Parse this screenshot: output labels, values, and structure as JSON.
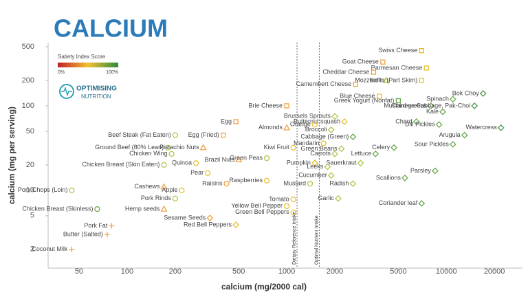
{
  "chart_data": {
    "type": "scatter",
    "title": "CALCIUM",
    "xlabel": "calcium (mg/2000 cal)",
    "ylabel": "calcium (mg per serving)",
    "xscale": "log",
    "yscale": "log",
    "xlim": [
      32,
      30000
    ],
    "ylim": [
      1.2,
      560
    ],
    "xticks": [
      50,
      100,
      200,
      500,
      1000,
      2000,
      5000,
      10000,
      20000
    ],
    "yticks": [
      2,
      5,
      10,
      20,
      50,
      100,
      200,
      500
    ],
    "legend": {
      "title": "Satiety Index Score",
      "min_label": "0%",
      "max_label": "100%"
    },
    "logo": {
      "line1": "OPTIMISING",
      "line2": "NUTRITION"
    },
    "reference_lines": [
      {
        "x": 1160,
        "label": "Dietary Reference Intake"
      },
      {
        "x": 1600,
        "label": "Optimal Nutrient Intake"
      }
    ],
    "points": [
      {
        "label": "Swiss Cheese",
        "x": 7000,
        "y": 450,
        "color": "#e6b422",
        "marker": "s"
      },
      {
        "label": "Goat Cheese",
        "x": 4000,
        "y": 330,
        "color": "#f0a040",
        "marker": "s"
      },
      {
        "label": "Parmesan Cheese",
        "x": 7500,
        "y": 280,
        "color": "#e6c229",
        "marker": "s"
      },
      {
        "label": "Cheddar Cheese",
        "x": 3500,
        "y": 250,
        "color": "#f0a040",
        "marker": "s"
      },
      {
        "label": "Kefir",
        "x": 4200,
        "y": 200,
        "color": "#a8c94a",
        "marker": "^"
      },
      {
        "label": "Mozzarella (Part Skim)",
        "x": 7000,
        "y": 200,
        "color": "#e6c229",
        "marker": "s"
      },
      {
        "label": "Camembert Cheese",
        "x": 2700,
        "y": 180,
        "color": "#f0a040",
        "marker": "s"
      },
      {
        "label": "Blue Cheese",
        "x": 3800,
        "y": 130,
        "color": "#e6c229",
        "marker": "s"
      },
      {
        "label": "Greek Yogurt (Nonfat)",
        "x": 5000,
        "y": 115,
        "color": "#6aa84f",
        "marker": "s"
      },
      {
        "label": "Bok Choy",
        "x": 17000,
        "y": 140,
        "color": "#4a9a4a",
        "marker": "d"
      },
      {
        "label": "Spinach",
        "x": 11000,
        "y": 120,
        "color": "#6aa84f",
        "marker": "d"
      },
      {
        "label": "Mustard greens",
        "x": 8000,
        "y": 100,
        "color": "#6aa84f",
        "marker": "d"
      },
      {
        "label": "Chinese Cabbage, Pak-Choi",
        "x": 15000,
        "y": 100,
        "color": "#4a9a4a",
        "marker": "d"
      },
      {
        "label": "Kale",
        "x": 9500,
        "y": 85,
        "color": "#6aa84f",
        "marker": "d"
      },
      {
        "label": "Chard",
        "x": 6500,
        "y": 65,
        "color": "#6aa84f",
        "marker": "d"
      },
      {
        "label": "Dill Pickles",
        "x": 9000,
        "y": 60,
        "color": "#6aa84f",
        "marker": "d"
      },
      {
        "label": "Watercress",
        "x": 22000,
        "y": 55,
        "color": "#4a9a4a",
        "marker": "d"
      },
      {
        "label": "Arugula",
        "x": 13000,
        "y": 45,
        "color": "#6aa84f",
        "marker": "d"
      },
      {
        "label": "Sour Pickles",
        "x": 11000,
        "y": 35,
        "color": "#6aa84f",
        "marker": "d"
      },
      {
        "label": "Parsley",
        "x": 8500,
        "y": 17,
        "color": "#6aa84f",
        "marker": "d"
      },
      {
        "label": "Scallions",
        "x": 5500,
        "y": 14,
        "color": "#6aa84f",
        "marker": "d"
      },
      {
        "label": "Coriander leaf",
        "x": 7000,
        "y": 7,
        "color": "#6aa84f",
        "marker": "d"
      },
      {
        "label": "Brie Cheese",
        "x": 1000,
        "y": 100,
        "color": "#f0a040",
        "marker": "s"
      },
      {
        "label": "Brussels Sprouts",
        "x": 2000,
        "y": 75,
        "color": "#a8c94a",
        "marker": "d"
      },
      {
        "label": "Butternut squash",
        "x": 2300,
        "y": 65,
        "color": "#e6c229",
        "marker": "d"
      },
      {
        "label": "Orange",
        "x": 1500,
        "y": 60,
        "color": "#e6c229",
        "marker": "o"
      },
      {
        "label": "Broccoli",
        "x": 1900,
        "y": 52,
        "color": "#a8c94a",
        "marker": "d"
      },
      {
        "label": "Almonds",
        "x": 1000,
        "y": 55,
        "color": "#f0a040",
        "marker": "^"
      },
      {
        "label": "Egg",
        "x": 480,
        "y": 65,
        "color": "#f0a040",
        "marker": "s"
      },
      {
        "label": "Egg (Fried)",
        "x": 400,
        "y": 45,
        "color": "#f0a040",
        "marker": "s"
      },
      {
        "label": "Beef Steak (Fat Eaten)",
        "x": 200,
        "y": 45,
        "color": "#a8c94a",
        "marker": "o"
      },
      {
        "label": "Ground Beef (80% Lean)",
        "x": 180,
        "y": 32,
        "color": "#a8c94a",
        "marker": "o"
      },
      {
        "label": "Pistachio Nuts",
        "x": 300,
        "y": 32,
        "color": "#f0a040",
        "marker": "^"
      },
      {
        "label": "Chicken Wing",
        "x": 190,
        "y": 27,
        "color": "#a8c94a",
        "marker": "o"
      },
      {
        "label": "Kiwi Fruit",
        "x": 1100,
        "y": 32,
        "color": "#e6c229",
        "marker": "o"
      },
      {
        "label": "Mandarin",
        "x": 1700,
        "y": 36,
        "color": "#e6c229",
        "marker": "o"
      },
      {
        "label": "Carrots",
        "x": 2000,
        "y": 27,
        "color": "#a8c94a",
        "marker": "d"
      },
      {
        "label": "Green Beans",
        "x": 2200,
        "y": 31,
        "color": "#a8c94a",
        "marker": "d"
      },
      {
        "label": "Cabbage (Green)",
        "x": 2600,
        "y": 43,
        "color": "#6aa84f",
        "marker": "d"
      },
      {
        "label": "Celery",
        "x": 4700,
        "y": 32,
        "color": "#6aa84f",
        "marker": "d"
      },
      {
        "label": "Lettuce",
        "x": 3600,
        "y": 27,
        "color": "#6aa84f",
        "marker": "d"
      },
      {
        "label": "Sauerkraut",
        "x": 2900,
        "y": 21,
        "color": "#a8c94a",
        "marker": "d"
      },
      {
        "label": "Brazil Nuts",
        "x": 500,
        "y": 23,
        "color": "#f0a040",
        "marker": "^"
      },
      {
        "label": "Green Peas",
        "x": 750,
        "y": 24,
        "color": "#a8c94a",
        "marker": "o"
      },
      {
        "label": "Pumpkin",
        "x": 1500,
        "y": 21,
        "color": "#e6c229",
        "marker": "d"
      },
      {
        "label": "Leeks",
        "x": 1800,
        "y": 19,
        "color": "#a8c94a",
        "marker": "d"
      },
      {
        "label": "Chicken Breast (Skin Eaten)",
        "x": 170,
        "y": 20,
        "color": "#a8c94a",
        "marker": "o"
      },
      {
        "label": "Quinoa",
        "x": 270,
        "y": 21,
        "color": "#e6c229",
        "marker": "o"
      },
      {
        "label": "Pear",
        "x": 320,
        "y": 16,
        "color": "#e6c229",
        "marker": "o"
      },
      {
        "label": "Raisins",
        "x": 420,
        "y": 12,
        "color": "#f0a040",
        "marker": "o"
      },
      {
        "label": "Cucumber",
        "x": 1900,
        "y": 15,
        "color": "#a8c94a",
        "marker": "d"
      },
      {
        "label": "Radish",
        "x": 2600,
        "y": 12,
        "color": "#a8c94a",
        "marker": "d"
      },
      {
        "label": "Mustard",
        "x": 1400,
        "y": 12,
        "color": "#a8c94a",
        "marker": "o"
      },
      {
        "label": "Raspberries",
        "x": 750,
        "y": 13,
        "color": "#e6c229",
        "marker": "o"
      },
      {
        "label": "Pork Chops (Loin)",
        "x": 45,
        "y": 10,
        "color": "#a8c94a",
        "marker": "o"
      },
      {
        "label": "Cashews",
        "x": 170,
        "y": 11,
        "color": "#f0a040",
        "marker": "^"
      },
      {
        "label": "Apple",
        "x": 220,
        "y": 10,
        "color": "#e6c229",
        "marker": "o"
      },
      {
        "label": "Tomato",
        "x": 1100,
        "y": 7.8,
        "color": "#e6c229",
        "marker": "o"
      },
      {
        "label": "Garlic",
        "x": 2100,
        "y": 8,
        "color": "#a8c94a",
        "marker": "d"
      },
      {
        "label": "Pork Rinds",
        "x": 200,
        "y": 8,
        "color": "#a8c94a",
        "marker": "o"
      },
      {
        "label": "Yellow Bell Pepper",
        "x": 1000,
        "y": 6.5,
        "color": "#e6c229",
        "marker": "o"
      },
      {
        "label": "Green Bell Peppers",
        "x": 1100,
        "y": 5.5,
        "color": "#e6c229",
        "marker": "o"
      },
      {
        "label": "Hemp seeds",
        "x": 170,
        "y": 6,
        "color": "#f0a040",
        "marker": "^"
      },
      {
        "label": "Chicken Breast (Skinless)",
        "x": 65,
        "y": 6,
        "color": "#6aa84f",
        "marker": "o"
      },
      {
        "label": "Pork Fat",
        "x": 80,
        "y": 3.8,
        "color": "#f0a040",
        "marker": "+"
      },
      {
        "label": "Sesame Seeds",
        "x": 330,
        "y": 4.7,
        "color": "#f0a040",
        "marker": "d"
      },
      {
        "label": "Red Bell Peppers",
        "x": 480,
        "y": 3.9,
        "color": "#e6c229",
        "marker": "d"
      },
      {
        "label": "Butter (Salted)",
        "x": 75,
        "y": 3,
        "color": "#f0a040",
        "marker": "+"
      },
      {
        "label": "Coconut Milk",
        "x": 45,
        "y": 2,
        "color": "#f0a040",
        "marker": "+"
      }
    ]
  }
}
